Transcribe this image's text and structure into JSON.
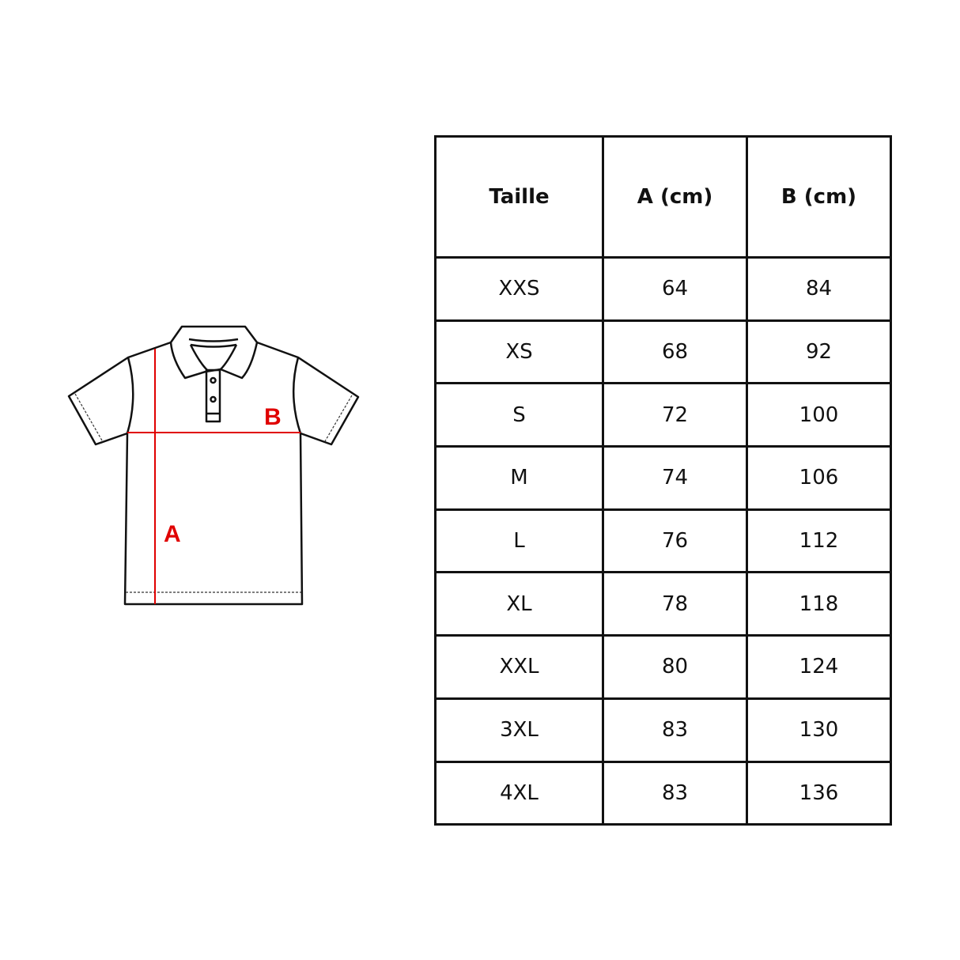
{
  "diagram": {
    "label_a": "A",
    "label_b": "B",
    "measure_color": "#e00000",
    "outline_color": "#111111"
  },
  "table": {
    "headers": [
      "Taille",
      "A (cm)",
      "B (cm)"
    ],
    "rows": [
      [
        "XXS",
        "64",
        "84"
      ],
      [
        "XS",
        "68",
        "92"
      ],
      [
        "S",
        "72",
        "100"
      ],
      [
        "M",
        "74",
        "106"
      ],
      [
        "L",
        "76",
        "112"
      ],
      [
        "XL",
        "78",
        "118"
      ],
      [
        "XXL",
        "80",
        "124"
      ],
      [
        "3XL",
        "83",
        "130"
      ],
      [
        "4XL",
        "83",
        "136"
      ]
    ]
  }
}
